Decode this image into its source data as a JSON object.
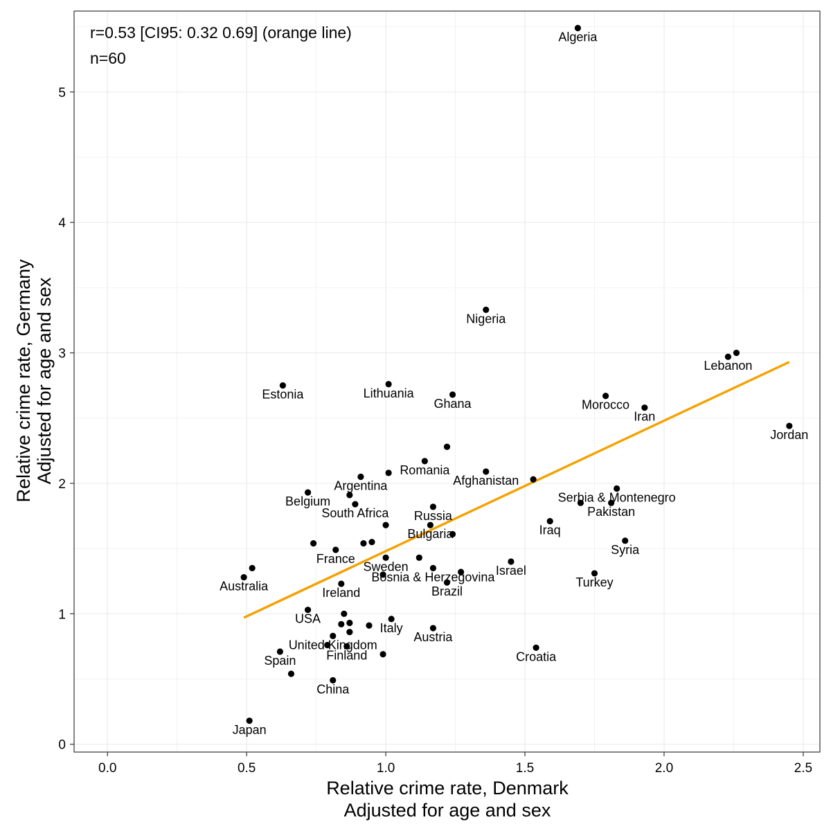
{
  "chart_data": {
    "type": "scatter",
    "xlabel_lines": [
      "Relative crime rate, Denmark",
      "Adjusted for age and sex"
    ],
    "ylabel_lines": [
      "Relative crime rate, Germany",
      "Adjusted for age and sex"
    ],
    "xlim": [
      -0.12,
      2.56
    ],
    "ylim": [
      -0.06,
      5.62
    ],
    "x_ticks": [
      0,
      0.5,
      1,
      1.5,
      2,
      2.5
    ],
    "x_tick_labels": [
      "0.0",
      "0.5",
      "1.0",
      "1.5",
      "2.0",
      "2.5"
    ],
    "y_ticks": [
      0,
      1,
      2,
      3,
      4,
      5
    ],
    "y_tick_labels": [
      "0",
      "1",
      "2",
      "3",
      "4",
      "5"
    ],
    "grid": true,
    "annotations": [
      "r=0.53 [CI95: 0.32 0.69] (orange line)",
      "n=60"
    ],
    "fit_line": {
      "color": "#f5a100",
      "x": [
        0.49,
        2.45
      ],
      "y": [
        0.97,
        2.93
      ]
    },
    "points": [
      {
        "x": 1.69,
        "y": 5.49,
        "label": "Algeria"
      },
      {
        "x": 1.36,
        "y": 3.33,
        "label": "Nigeria"
      },
      {
        "x": 2.26,
        "y": 3.0,
        "label": ""
      },
      {
        "x": 2.23,
        "y": 2.97,
        "label": "Lebanon"
      },
      {
        "x": 0.63,
        "y": 2.75,
        "label": "Estonia"
      },
      {
        "x": 1.01,
        "y": 2.76,
        "label": "Lithuania"
      },
      {
        "x": 1.24,
        "y": 2.68,
        "label": "Ghana"
      },
      {
        "x": 1.79,
        "y": 2.67,
        "label": "Morocco"
      },
      {
        "x": 1.93,
        "y": 2.58,
        "label": "Iran"
      },
      {
        "x": 2.45,
        "y": 2.44,
        "label": "Jordan"
      },
      {
        "x": 1.22,
        "y": 2.28,
        "label": ""
      },
      {
        "x": 1.14,
        "y": 2.17,
        "label": "Romania"
      },
      {
        "x": 1.36,
        "y": 2.09,
        "label": "Afghanistan"
      },
      {
        "x": 1.01,
        "y": 2.08,
        "label": ""
      },
      {
        "x": 0.91,
        "y": 2.05,
        "label": "Argentina"
      },
      {
        "x": 1.53,
        "y": 2.03,
        "label": ""
      },
      {
        "x": 1.83,
        "y": 1.96,
        "label": "Serbia & Montenegro"
      },
      {
        "x": 0.72,
        "y": 1.93,
        "label": "Belgium"
      },
      {
        "x": 0.87,
        "y": 1.91,
        "label": ""
      },
      {
        "x": 0.89,
        "y": 1.84,
        "label": "South Africa"
      },
      {
        "x": 1.7,
        "y": 1.85,
        "label": ""
      },
      {
        "x": 1.81,
        "y": 1.85,
        "label": "Pakistan"
      },
      {
        "x": 1.17,
        "y": 1.82,
        "label": "Russia"
      },
      {
        "x": 1.59,
        "y": 1.71,
        "label": "Iraq"
      },
      {
        "x": 1.0,
        "y": 1.68,
        "label": ""
      },
      {
        "x": 1.16,
        "y": 1.68,
        "label": "Bulgaria"
      },
      {
        "x": 1.24,
        "y": 1.61,
        "label": ""
      },
      {
        "x": 1.86,
        "y": 1.56,
        "label": "Syria"
      },
      {
        "x": 0.74,
        "y": 1.54,
        "label": ""
      },
      {
        "x": 0.95,
        "y": 1.55,
        "label": ""
      },
      {
        "x": 0.92,
        "y": 1.54,
        "label": ""
      },
      {
        "x": 0.82,
        "y": 1.49,
        "label": "France"
      },
      {
        "x": 1.0,
        "y": 1.43,
        "label": "Sweden"
      },
      {
        "x": 1.12,
        "y": 1.43,
        "label": ""
      },
      {
        "x": 1.45,
        "y": 1.4,
        "label": "Israel"
      },
      {
        "x": 1.17,
        "y": 1.35,
        "label": "Bosnia & Herzegovina"
      },
      {
        "x": 0.52,
        "y": 1.35,
        "label": ""
      },
      {
        "x": 0.99,
        "y": 1.3,
        "label": ""
      },
      {
        "x": 1.27,
        "y": 1.32,
        "label": ""
      },
      {
        "x": 1.75,
        "y": 1.31,
        "label": "Turkey"
      },
      {
        "x": 0.49,
        "y": 1.28,
        "label": "Australia"
      },
      {
        "x": 1.22,
        "y": 1.24,
        "label": "Brazil"
      },
      {
        "x": 0.84,
        "y": 1.23,
        "label": "Ireland"
      },
      {
        "x": 0.72,
        "y": 1.03,
        "label": "USA"
      },
      {
        "x": 0.85,
        "y": 1.0,
        "label": ""
      },
      {
        "x": 1.02,
        "y": 0.96,
        "label": "Italy"
      },
      {
        "x": 0.87,
        "y": 0.93,
        "label": ""
      },
      {
        "x": 0.84,
        "y": 0.92,
        "label": ""
      },
      {
        "x": 0.94,
        "y": 0.91,
        "label": ""
      },
      {
        "x": 1.17,
        "y": 0.89,
        "label": "Austria"
      },
      {
        "x": 0.87,
        "y": 0.86,
        "label": ""
      },
      {
        "x": 0.81,
        "y": 0.83,
        "label": "United Kingdom"
      },
      {
        "x": 0.79,
        "y": 0.76,
        "label": ""
      },
      {
        "x": 0.86,
        "y": 0.75,
        "label": "Finland"
      },
      {
        "x": 1.54,
        "y": 0.74,
        "label": "Croatia"
      },
      {
        "x": 0.62,
        "y": 0.71,
        "label": "Spain"
      },
      {
        "x": 0.99,
        "y": 0.69,
        "label": ""
      },
      {
        "x": 0.66,
        "y": 0.54,
        "label": ""
      },
      {
        "x": 0.81,
        "y": 0.49,
        "label": "China"
      },
      {
        "x": 0.51,
        "y": 0.18,
        "label": "Japan"
      }
    ]
  }
}
